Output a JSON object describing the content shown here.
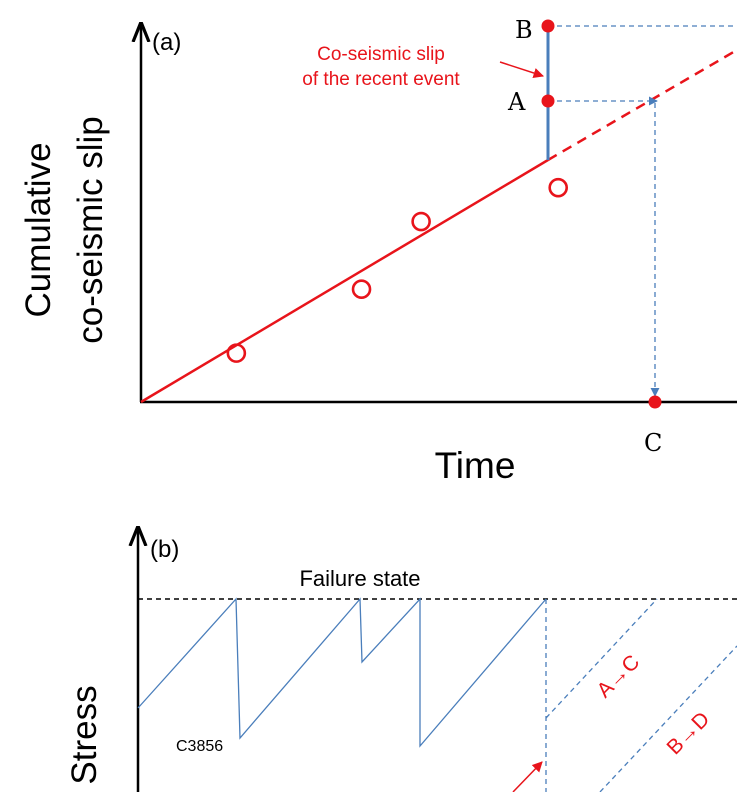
{
  "panel_a": {
    "tag": "(a)",
    "ylabel_line1": "Cumulative",
    "ylabel_line2": "co-seismic slip",
    "xlabel": "Time",
    "annotation_line1": "Co-seismic slip",
    "annotation_line2": "of the recent event",
    "point_a_label": "A",
    "point_b_label": "B",
    "point_c_label": "C",
    "observed_points": [
      {
        "t": 0.16,
        "slip": 0.13
      },
      {
        "t": 0.37,
        "slip": 0.3
      },
      {
        "t": 0.47,
        "slip": 0.48
      },
      {
        "t": 0.7,
        "slip": 0.57
      }
    ]
  },
  "panel_b": {
    "tag": "(b)",
    "ylabel": "Stress",
    "failure_label": "Failure state",
    "code_label": "C3856",
    "path_a_to_c": "A→C",
    "path_b_to_d": "B→D"
  },
  "colors": {
    "trend_red": "#e8141b",
    "steel_blue": "#4a7ebb",
    "black": "#000000"
  }
}
